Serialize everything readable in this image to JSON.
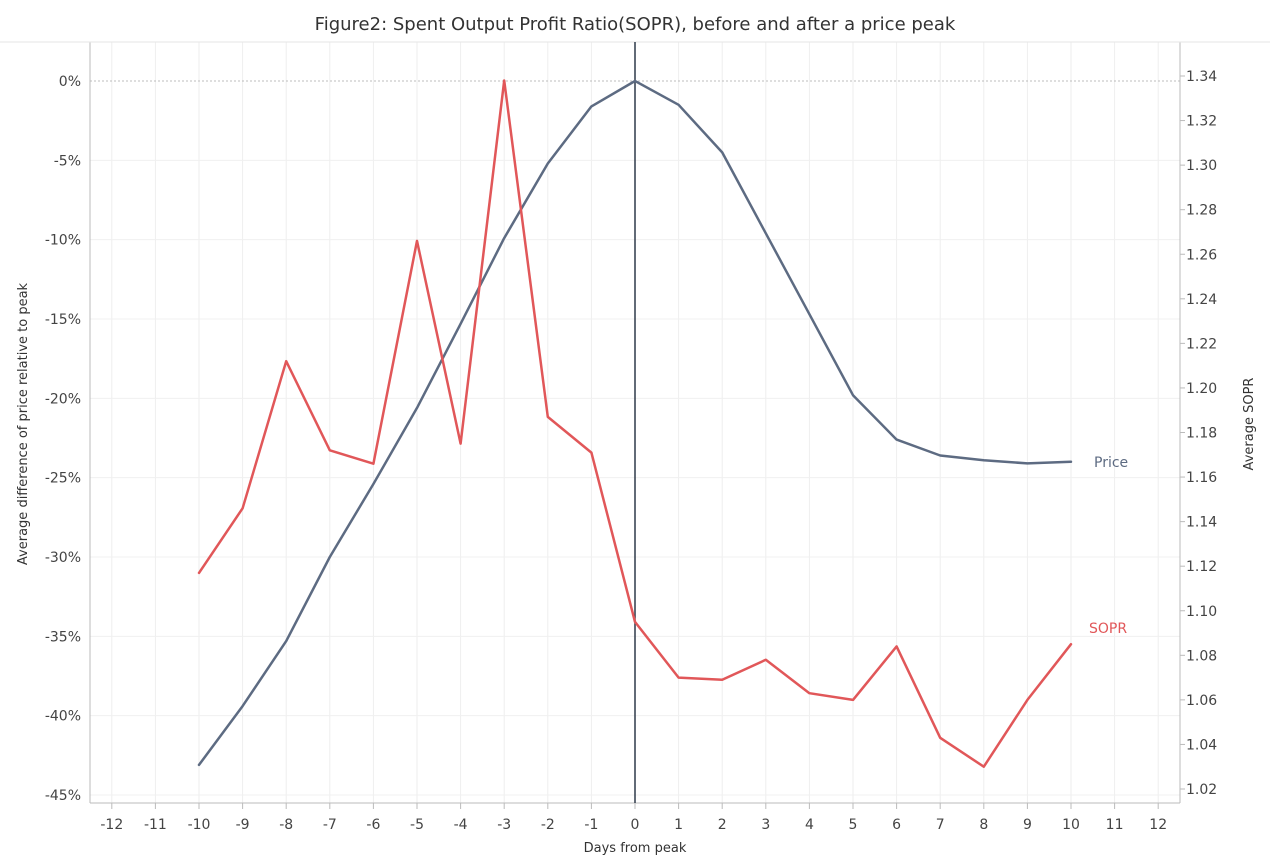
{
  "chart_data": {
    "type": "line",
    "title": "Figure2: Spent Output Profit Ratio(SOPR), before and after a price peak",
    "xlabel": "Days from peak",
    "ylabel_left": "Average difference of price relative to peak",
    "ylabel_right": "Average SOPR",
    "x_ticks": [
      "-12",
      "-11",
      "-10",
      "-9",
      "-8",
      "-7",
      "-6",
      "-5",
      "-4",
      "-3",
      "-2",
      "-1",
      "0",
      "1",
      "2",
      "3",
      "4",
      "5",
      "6",
      "7",
      "8",
      "9",
      "10",
      "11",
      "12"
    ],
    "xlim": [
      -12.5,
      12.5
    ],
    "y_left_ticks": [
      "0%",
      "-5%",
      "-10%",
      "-15%",
      "-20%",
      "-25%",
      "-30%",
      "-35%",
      "-40%",
      "-45%"
    ],
    "y_left_tick_values": [
      0,
      -5,
      -10,
      -15,
      -20,
      -25,
      -30,
      -35,
      -40,
      -45
    ],
    "ylim_left": [
      -45,
      0
    ],
    "y_right_ticks": [
      "1.34",
      "1.32",
      "1.30",
      "1.28",
      "1.26",
      "1.24",
      "1.22",
      "1.20",
      "1.18",
      "1.16",
      "1.14",
      "1.12",
      "1.10",
      "1.08",
      "1.06",
      "1.04",
      "1.02"
    ],
    "y_right_tick_values": [
      1.34,
      1.32,
      1.3,
      1.28,
      1.26,
      1.24,
      1.22,
      1.2,
      1.18,
      1.16,
      1.14,
      1.12,
      1.1,
      1.08,
      1.06,
      1.04,
      1.02
    ],
    "ylim_right": [
      1.02,
      1.34
    ],
    "reference_line_x": 0,
    "grid": true,
    "x": [
      -10,
      -9,
      -8,
      -7,
      -6,
      -5,
      -4,
      -3,
      -2,
      -1,
      0,
      1,
      2,
      3,
      4,
      5,
      6,
      7,
      8,
      9,
      10
    ],
    "series": [
      {
        "name": "Price",
        "axis": "left",
        "color": "#5d6b82",
        "values": [
          -43.1,
          -39.4,
          -35.3,
          -30.0,
          -25.4,
          -20.6,
          -15.3,
          -9.9,
          -5.2,
          -1.6,
          0,
          -1.5,
          -4.5,
          -9.6,
          -14.7,
          -19.8,
          -22.6,
          -23.6,
          -23.9,
          -24.1,
          -24.0
        ]
      },
      {
        "name": "SOPR",
        "axis": "right",
        "color": "#e15759",
        "values": [
          1.117,
          1.146,
          1.212,
          1.172,
          1.166,
          1.266,
          1.175,
          1.338,
          1.187,
          1.171,
          1.095,
          1.07,
          1.069,
          1.078,
          1.063,
          1.06,
          1.084,
          1.043,
          1.03,
          1.06,
          1.085
        ]
      }
    ]
  }
}
